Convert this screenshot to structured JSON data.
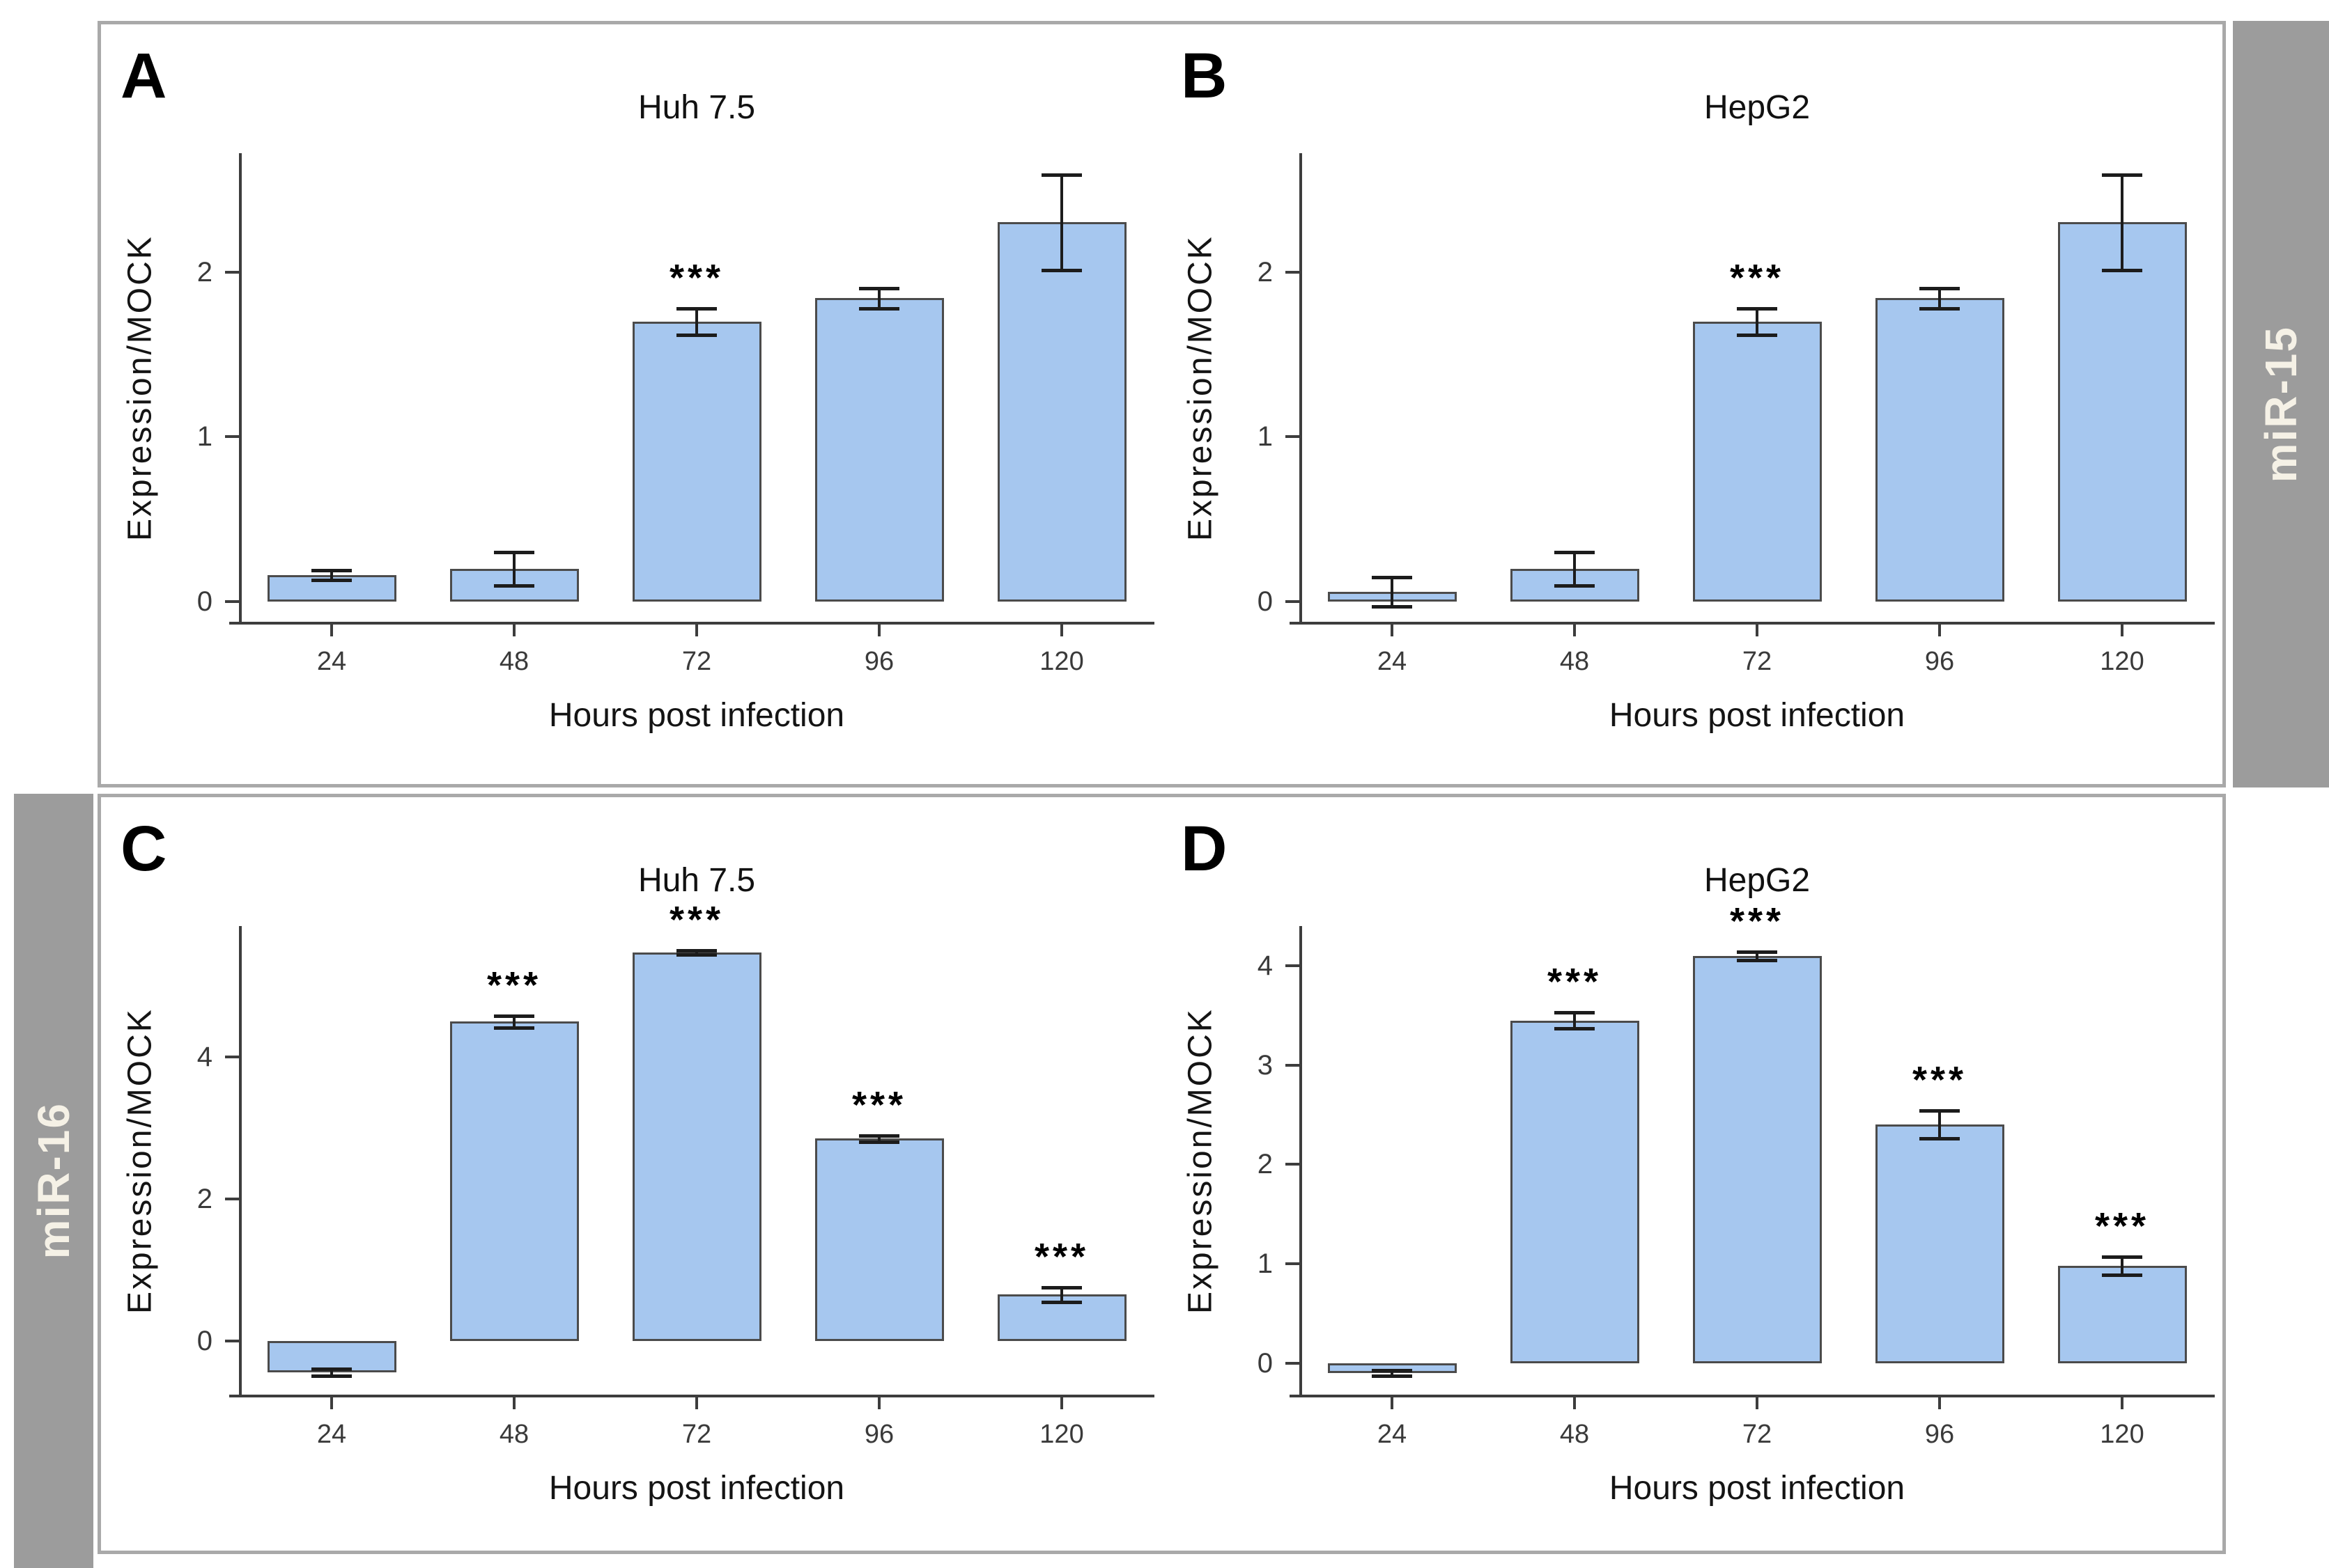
{
  "figure": {
    "rows": [
      {
        "strip_label": "miR-15",
        "strip_side": "right"
      },
      {
        "strip_label": "miR-16",
        "strip_side": "left"
      }
    ]
  },
  "colors": {
    "bar_fill": "#a6c7ef",
    "bar_border": "#4b4b4b",
    "error_bar": "#1c1c1c",
    "axis": "#3d3d3d",
    "strip_background": "#9c9c9c",
    "strip_text": "#f5f1e6",
    "panel_border": "#a9a9a9"
  },
  "chart_data": [
    {
      "type": "bar",
      "panel_letter": "A",
      "title": "Huh 7.5",
      "row_label": "miR-15",
      "categories": [
        "24",
        "48",
        "72",
        "96",
        "120"
      ],
      "values": [
        0.16,
        0.2,
        1.7,
        1.84,
        2.3
      ],
      "errors": [
        0.03,
        0.1,
        0.08,
        0.06,
        0.29
      ],
      "significance": [
        "",
        "",
        "***",
        "",
        ""
      ],
      "xlabel": "Hours post infection",
      "ylabel": "Expression/MOCK",
      "yticks": [
        0,
        1,
        2
      ],
      "ylim": [
        -0.13,
        2.72
      ],
      "grid": false,
      "legend": "none"
    },
    {
      "type": "bar",
      "panel_letter": "B",
      "title": "HepG2",
      "row_label": "miR-15",
      "categories": [
        "24",
        "48",
        "72",
        "96",
        "120"
      ],
      "values": [
        0.06,
        0.2,
        1.7,
        1.84,
        2.3
      ],
      "errors": [
        0.09,
        0.1,
        0.08,
        0.06,
        0.29
      ],
      "significance": [
        "",
        "",
        "***",
        "",
        ""
      ],
      "xlabel": "Hours post infection",
      "ylabel": "Expression/MOCK",
      "yticks": [
        0,
        1,
        2
      ],
      "ylim": [
        -0.13,
        2.72
      ],
      "grid": false,
      "legend": "none"
    },
    {
      "type": "bar",
      "panel_letter": "C",
      "title": "Huh 7.5",
      "row_label": "miR-16",
      "categories": [
        "24",
        "48",
        "72",
        "96",
        "120"
      ],
      "values": [
        -0.45,
        4.5,
        5.48,
        2.85,
        0.65
      ],
      "errors": [
        0.05,
        0.08,
        0.03,
        0.04,
        0.1
      ],
      "significance": [
        "",
        "***",
        "***",
        "***",
        "***"
      ],
      "xlabel": "Hours post infection",
      "ylabel": "Expression/MOCK",
      "yticks": [
        0,
        2,
        4
      ],
      "ylim": [
        -0.78,
        5.85
      ],
      "grid": false,
      "legend": "none"
    },
    {
      "type": "bar",
      "panel_letter": "D",
      "title": "HepG2",
      "row_label": "miR-16",
      "categories": [
        "24",
        "48",
        "72",
        "96",
        "120"
      ],
      "values": [
        -0.1,
        3.45,
        4.1,
        2.4,
        0.98
      ],
      "errors": [
        0.03,
        0.08,
        0.04,
        0.14,
        0.09
      ],
      "significance": [
        "",
        "***",
        "***",
        "***",
        "***"
      ],
      "xlabel": "Hours post infection",
      "ylabel": "Expression/MOCK",
      "yticks": [
        0,
        1,
        2,
        3,
        4
      ],
      "ylim": [
        -0.33,
        4.4
      ],
      "grid": false,
      "legend": "none"
    }
  ]
}
